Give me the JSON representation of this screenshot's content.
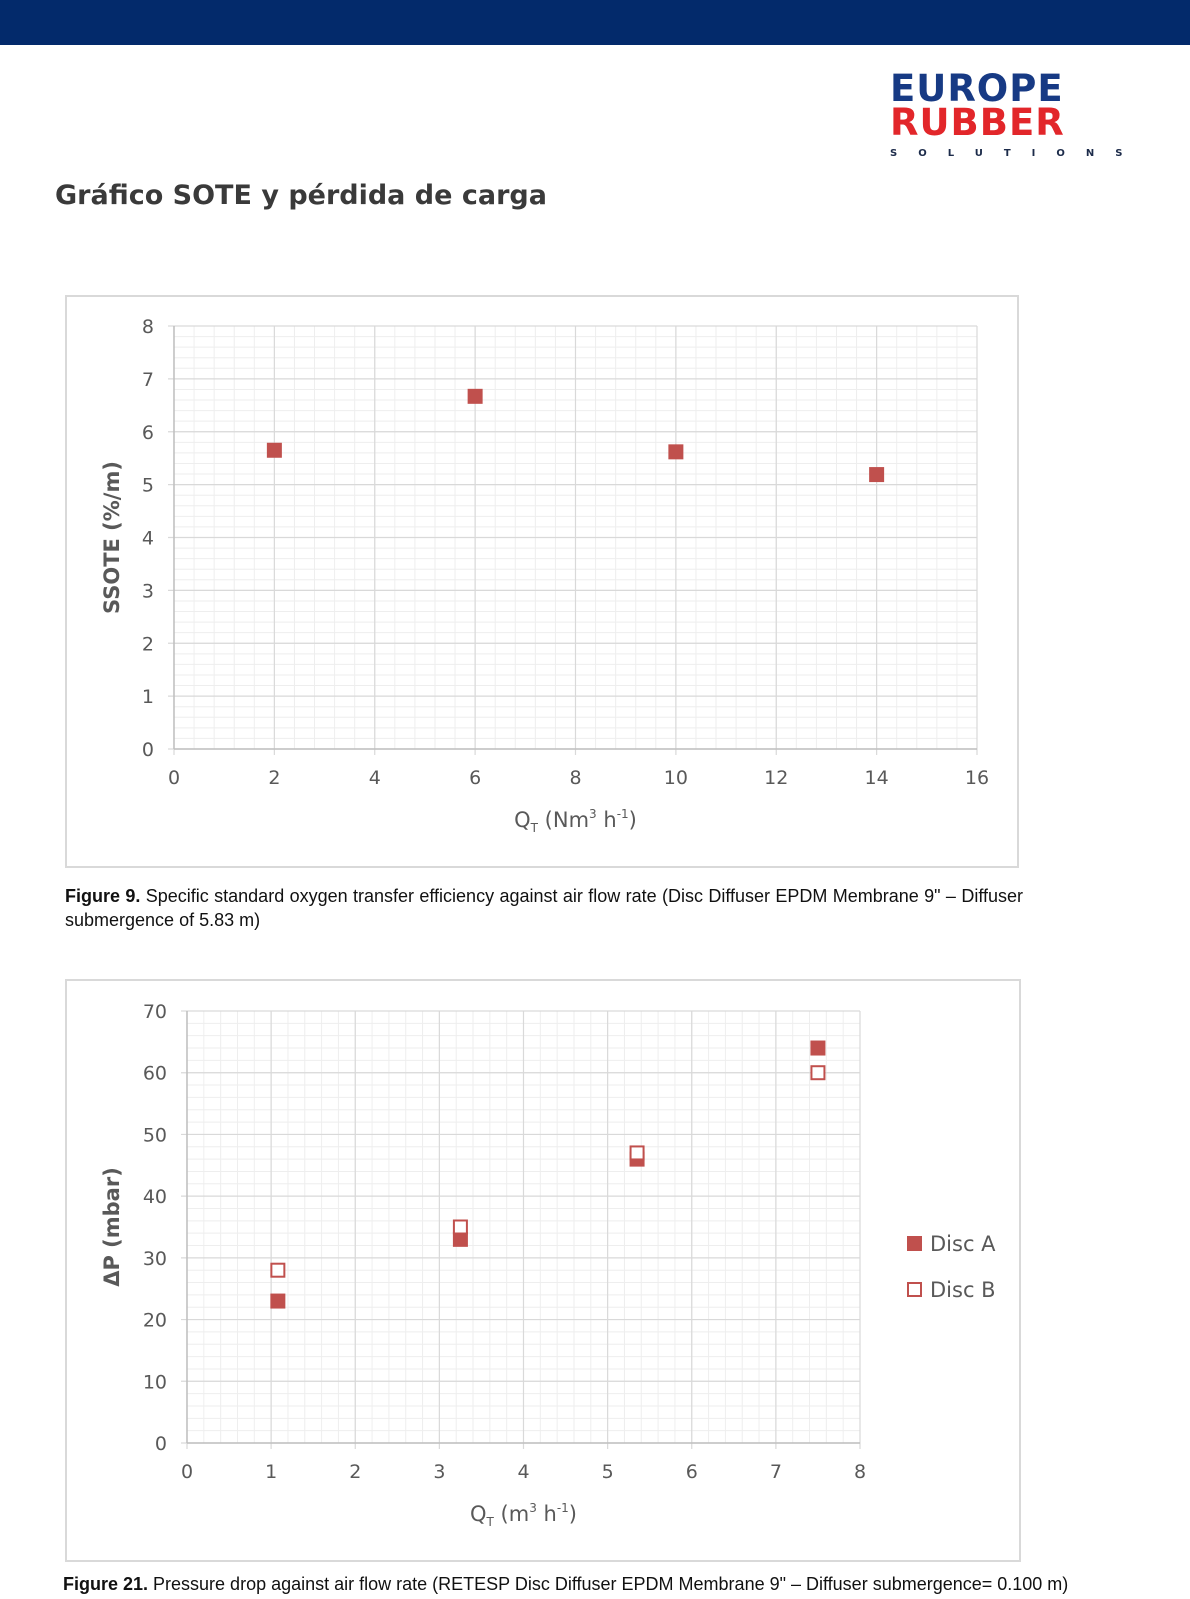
{
  "colors": {
    "topbar": "#032a6b",
    "logo_blue": "#173a84",
    "logo_red": "#e2262a",
    "marker": "#c0504d",
    "grid_major": "#d9d9d9",
    "grid_minor": "#eeeeee"
  },
  "logo": {
    "line1": "EUROPE",
    "line2": "RUBBER",
    "line3": "SOLUTIONS"
  },
  "page_title": "Gráfico SOTE y pérdida de carga",
  "chart_data": [
    {
      "type": "scatter",
      "xlabel": "Q_T (Nm³ h⁻¹)",
      "ylabel": "SSOTE (%/m)",
      "xlim": [
        0,
        16
      ],
      "ylim": [
        0,
        8
      ],
      "xticks": [
        0,
        2,
        4,
        6,
        8,
        10,
        12,
        14,
        16
      ],
      "yticks": [
        0,
        1,
        2,
        3,
        4,
        5,
        6,
        7,
        8
      ],
      "grid": true,
      "legend": "none",
      "series": [
        {
          "marker": "filled-square",
          "x": [
            2,
            6,
            10,
            14
          ],
          "y": [
            5.65,
            6.67,
            5.62,
            5.19
          ]
        }
      ]
    },
    {
      "type": "scatter",
      "xlabel": "Q_T (m³ h⁻¹)",
      "ylabel": "ΔP (mbar)",
      "xlim": [
        0,
        8
      ],
      "ylim": [
        0,
        70
      ],
      "xticks": [
        0,
        1,
        2,
        3,
        4,
        5,
        6,
        7,
        8
      ],
      "yticks": [
        0,
        10,
        20,
        30,
        40,
        50,
        60,
        70
      ],
      "grid": true,
      "legend": "right",
      "series": [
        {
          "name": "Disc A",
          "marker": "filled-square",
          "x": [
            1.08,
            3.25,
            5.35,
            7.5
          ],
          "y": [
            23,
            33,
            46,
            64
          ]
        },
        {
          "name": "Disc B",
          "marker": "open-square",
          "x": [
            1.08,
            3.25,
            5.35,
            7.5
          ],
          "y": [
            28,
            35,
            47,
            60
          ]
        }
      ]
    }
  ],
  "captions": {
    "fig9_label": "Figure 9.",
    "fig9_text": " Specific standard oxygen transfer efficiency against air flow rate (Disc Diffuser EPDM Membrane 9\" – Diffuser submergence of 5.83 m)",
    "fig21_label": "Figure 21.",
    "fig21_text": " Pressure drop against air flow rate (RETESP Disc Diffuser EPDM Membrane 9\" – Diffuser submergence= 0.100 m)"
  }
}
